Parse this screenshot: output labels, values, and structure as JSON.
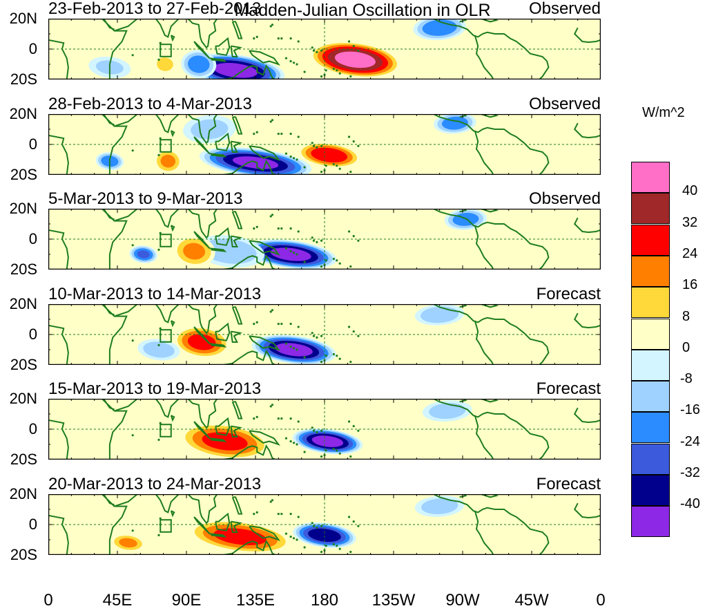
{
  "title": "Madden-Julian Oscillation in OLR",
  "units": "W/m^2",
  "lat_labels": [
    "20N",
    "0",
    "20S"
  ],
  "lon_labels": [
    "0",
    "45E",
    "90E",
    "135E",
    "180",
    "135W",
    "90W",
    "45W",
    "0"
  ],
  "panels": [
    {
      "date": "23-Feb-2013 to 27-Feb-2013",
      "label": "Observed",
      "anomalies": [
        {
          "lon": 122,
          "lat": -14,
          "value": -44,
          "lon_radius": 28,
          "lat_radius": 9
        },
        {
          "lon": 98,
          "lat": -10,
          "value": -20,
          "lon_radius": 10,
          "lat_radius": 8
        },
        {
          "lon": 200,
          "lat": -7,
          "value": 44,
          "lon_radius": 26,
          "lat_radius": 10
        },
        {
          "lon": 76,
          "lat": -10,
          "value": 14,
          "lon_radius": 6,
          "lat_radius": 5
        },
        {
          "lon": 255,
          "lat": 14,
          "value": -22,
          "lon_radius": 15,
          "lat_radius": 7
        },
        {
          "lon": 40,
          "lat": -12,
          "value": -8,
          "lon_radius": 12,
          "lat_radius": 6
        }
      ]
    },
    {
      "date": "28-Feb-2013 to 4-Mar-2013",
      "label": "Observed",
      "anomalies": [
        {
          "lon": 135,
          "lat": -12,
          "value": -42,
          "lon_radius": 32,
          "lat_radius": 8
        },
        {
          "lon": 105,
          "lat": 10,
          "value": -10,
          "lon_radius": 15,
          "lat_radius": 8
        },
        {
          "lon": 183,
          "lat": -7,
          "value": 30,
          "lon_radius": 18,
          "lat_radius": 7
        },
        {
          "lon": 78,
          "lat": -11,
          "value": 16,
          "lon_radius": 8,
          "lat_radius": 7
        },
        {
          "lon": 265,
          "lat": 14,
          "value": -20,
          "lon_radius": 12,
          "lat_radius": 6
        },
        {
          "lon": 40,
          "lat": -11,
          "value": -20,
          "lon_radius": 8,
          "lat_radius": 5
        }
      ]
    },
    {
      "date": "5-Mar-2013 to 9-Mar-2013",
      "label": "Observed",
      "anomalies": [
        {
          "lon": 158,
          "lat": -10,
          "value": -44,
          "lon_radius": 26,
          "lat_radius": 8
        },
        {
          "lon": 118,
          "lat": -8,
          "value": -14,
          "lon_radius": 20,
          "lat_radius": 9
        },
        {
          "lon": 95,
          "lat": -8,
          "value": 16,
          "lon_radius": 12,
          "lat_radius": 9
        },
        {
          "lon": 62,
          "lat": -10,
          "value": -24,
          "lon_radius": 8,
          "lat_radius": 5
        },
        {
          "lon": 272,
          "lat": 13,
          "value": -20,
          "lon_radius": 12,
          "lat_radius": 6
        }
      ]
    },
    {
      "date": "10-Mar-2013 to 14-Mar-2013",
      "label": "Forecast",
      "anomalies": [
        {
          "lon": 160,
          "lat": -10,
          "value": -44,
          "lon_radius": 24,
          "lat_radius": 8
        },
        {
          "lon": 100,
          "lat": -5,
          "value": 26,
          "lon_radius": 16,
          "lat_radius": 9
        },
        {
          "lon": 72,
          "lat": -10,
          "value": -12,
          "lon_radius": 12,
          "lat_radius": 6
        },
        {
          "lon": 255,
          "lat": 13,
          "value": -14,
          "lon_radius": 14,
          "lat_radius": 6
        }
      ]
    },
    {
      "date": "15-Mar-2013 to 19-Mar-2013",
      "label": "Forecast",
      "anomalies": [
        {
          "lon": 182,
          "lat": -8,
          "value": -44,
          "lon_radius": 20,
          "lat_radius": 7
        },
        {
          "lon": 115,
          "lat": -8,
          "value": 26,
          "lon_radius": 26,
          "lat_radius": 10
        },
        {
          "lon": 260,
          "lat": 12,
          "value": -12,
          "lon_radius": 14,
          "lat_radius": 6
        }
      ]
    },
    {
      "date": "20-Mar-2013 to 24-Mar-2013",
      "label": "Forecast",
      "anomalies": [
        {
          "lon": 180,
          "lat": -7,
          "value": -38,
          "lon_radius": 18,
          "lat_radius": 7
        },
        {
          "lon": 125,
          "lat": -8,
          "value": 26,
          "lon_radius": 30,
          "lat_radius": 9
        },
        {
          "lon": 52,
          "lat": -12,
          "value": 16,
          "lon_radius": 10,
          "lat_radius": 5
        },
        {
          "lon": 255,
          "lat": 12,
          "value": -12,
          "lon_radius": 14,
          "lat_radius": 6
        }
      ]
    }
  ],
  "colorbar": {
    "labels": [
      "40",
      "32",
      "24",
      "16",
      "8",
      "0",
      "-8",
      "-16",
      "-24",
      "-32",
      "-40"
    ],
    "colors": [
      "#ff6ec7",
      "#a02828",
      "#ff0000",
      "#ff7f00",
      "#ffd83a",
      "#ffffc8",
      "#d2f5ff",
      "#a0d2ff",
      "#2a8cff",
      "#3c5adc",
      "#00008c",
      "#8c28e6"
    ]
  },
  "map_colors": {
    "coast": "#1e7d1e",
    "grid": "#1e7d1e",
    "frame": "#000000"
  }
}
